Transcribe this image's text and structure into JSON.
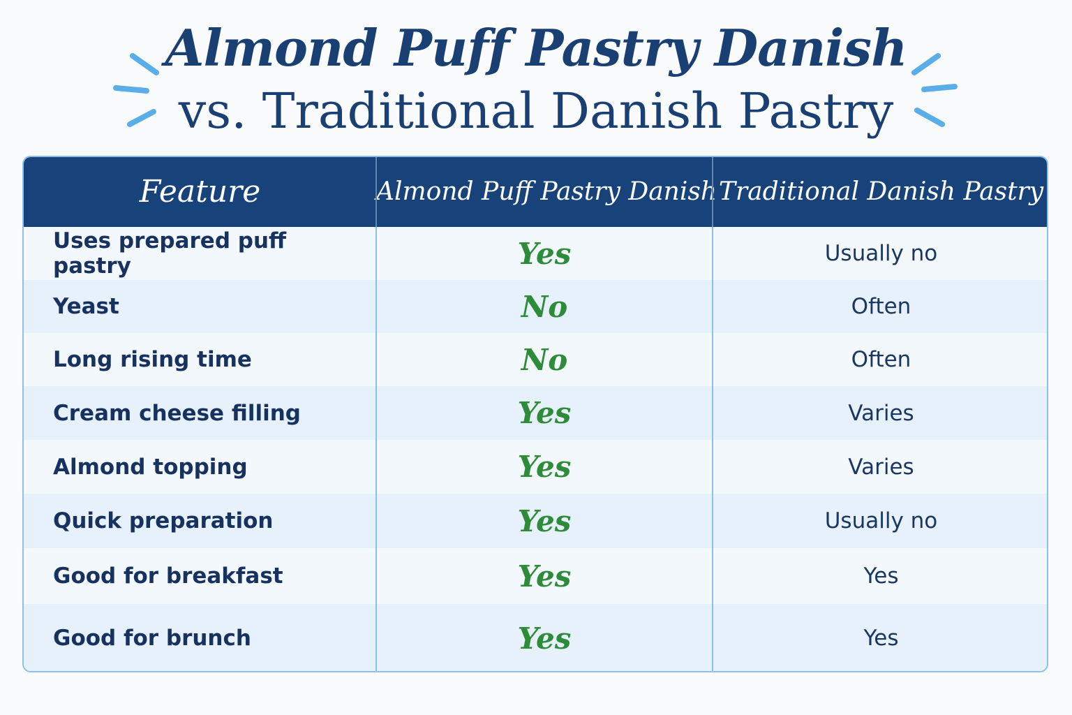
{
  "title": {
    "line1": "Almond Puff Pastry Danish",
    "line2": "vs. Traditional Danish Pastry"
  },
  "colors": {
    "header_bg": "#17427a",
    "title": "#1a3f73",
    "yes_no_green": "#2e8b3a",
    "accent_blue": "#5aaee8",
    "border": "#8cc0e6"
  },
  "table": {
    "headers": {
      "feature": "Feature",
      "almond": "Almond Puff Pastry Danish",
      "traditional": "Traditional Danish Pastry"
    },
    "rows": [
      {
        "feature": "Uses prepared puff pastry",
        "almond": "Yes",
        "traditional": "Usually no"
      },
      {
        "feature": "Yeast",
        "almond": "No",
        "traditional": "Often"
      },
      {
        "feature": "Long rising time",
        "almond": "No",
        "traditional": "Often"
      },
      {
        "feature": "Cream cheese filling",
        "almond": "Yes",
        "traditional": "Varies"
      },
      {
        "feature": "Almond topping",
        "almond": "Yes",
        "traditional": "Varies"
      },
      {
        "feature": "Quick preparation",
        "almond": "Yes",
        "traditional": "Usually no"
      },
      {
        "feature": "Good for breakfast",
        "almond": "Yes",
        "traditional": "Yes"
      },
      {
        "feature": "Good for brunch",
        "almond": "Yes",
        "traditional": "Yes"
      }
    ]
  }
}
